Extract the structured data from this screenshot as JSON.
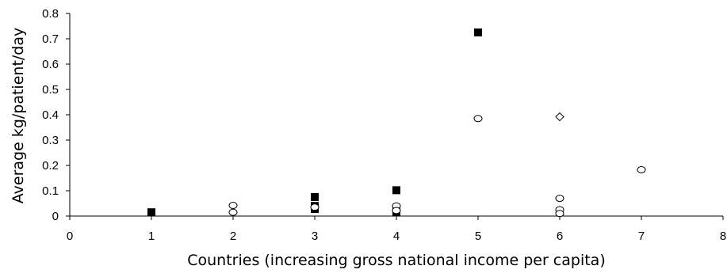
{
  "chart_data": {
    "type": "scatter",
    "title": "",
    "xlabel": "Countries (increasing gross national income per capita)",
    "ylabel": "Average kg/patient/day",
    "xlim": [
      0,
      8
    ],
    "ylim": [
      0,
      0.8
    ],
    "xticks": [
      "0",
      "1",
      "2",
      "3",
      "4",
      "5",
      "6",
      "7",
      "8"
    ],
    "yticks": [
      "0",
      "0.1",
      "0.2",
      "0.3",
      "0.4",
      "0.5",
      "0.6",
      "0.7",
      "0.8"
    ],
    "grid": false,
    "legend": "none",
    "series": [
      {
        "marker": "filled-square",
        "color": "#000000",
        "points": [
          {
            "x": 1,
            "y": 0.015
          },
          {
            "x": 3,
            "y": 0.075
          },
          {
            "x": 3,
            "y": 0.04
          },
          {
            "x": 3,
            "y": 0.028
          },
          {
            "x": 4,
            "y": 0.102
          },
          {
            "x": 4,
            "y": 0.02
          },
          {
            "x": 4,
            "y": 0.015
          },
          {
            "x": 5,
            "y": 0.725
          }
        ]
      },
      {
        "marker": "open-circle",
        "color": "#000000",
        "points": [
          {
            "x": 2,
            "y": 0.042
          },
          {
            "x": 2,
            "y": 0.015
          },
          {
            "x": 3,
            "y": 0.035
          },
          {
            "x": 4,
            "y": 0.04
          },
          {
            "x": 4,
            "y": 0.022
          },
          {
            "x": 5,
            "y": 0.385
          },
          {
            "x": 6,
            "y": 0.07
          },
          {
            "x": 6,
            "y": 0.025
          },
          {
            "x": 6,
            "y": 0.01
          },
          {
            "x": 7,
            "y": 0.183
          }
        ]
      },
      {
        "marker": "open-diamond",
        "color": "#000000",
        "points": [
          {
            "x": 6,
            "y": 0.392
          }
        ]
      }
    ]
  }
}
